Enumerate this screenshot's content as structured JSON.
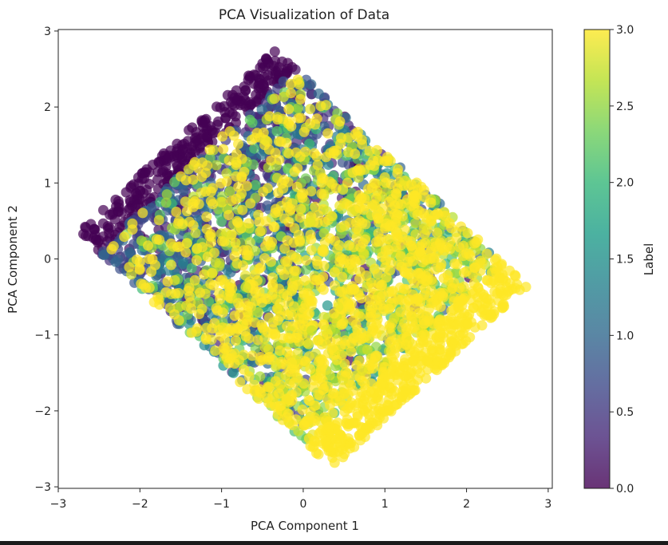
{
  "chart_data": {
    "type": "scatter",
    "title": "PCA Visualization of Data",
    "xlabel": "PCA Component 1",
    "ylabel": "PCA Component 2",
    "xlim": [
      -3.0,
      3.05
    ],
    "ylim": [
      -3.02,
      3.02
    ],
    "x_ticks": [
      -3,
      -2,
      -1,
      0,
      1,
      2,
      3
    ],
    "x_tick_labels": [
      "−3",
      "−2",
      "−1",
      "0",
      "1",
      "2",
      "3"
    ],
    "y_ticks": [
      -3,
      -2,
      -1,
      0,
      1,
      2,
      3
    ],
    "y_tick_labels": [
      "−3",
      "−2",
      "−1",
      "0",
      "1",
      "2",
      "3"
    ],
    "grid": false,
    "marker_alpha": 0.7,
    "region": {
      "shape": "rotated-square",
      "corners": [
        [
          -2.75,
          0.35
        ],
        [
          -0.35,
          2.75
        ],
        [
          2.75,
          -0.35
        ],
        [
          0.35,
          -2.75
        ]
      ]
    },
    "color_gradient": "top-left = 0 (dark purple) to bottom-right = 3 (yellow)",
    "colorbar": {
      "label": "Label",
      "range": [
        0.0,
        3.0
      ],
      "ticks": [
        0.0,
        0.5,
        1.0,
        1.5,
        2.0,
        2.5,
        3.0
      ],
      "tick_labels": [
        "0.0",
        "0.5",
        "1.0",
        "1.5",
        "2.0",
        "2.5",
        "3.0"
      ],
      "colormap": "viridis",
      "colormap_stops": [
        "#440154",
        "#482878",
        "#3e4989",
        "#31688e",
        "#26828e",
        "#1f9e89",
        "#35b779",
        "#6ece58",
        "#b5de2b",
        "#fde725"
      ]
    }
  }
}
